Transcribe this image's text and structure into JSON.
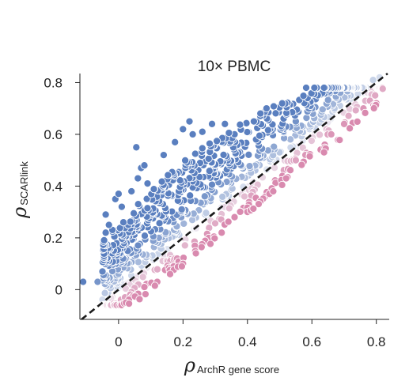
{
  "chart_data": {
    "type": "scatter",
    "title": "10× PBMC",
    "xlabel": {
      "symbol": "ρ",
      "subscript": "ArchR gene score"
    },
    "ylabel": {
      "symbol": "ρ",
      "subscript": "SCARlink"
    },
    "xlim": [
      -0.12,
      0.84
    ],
    "ylim": [
      -0.115,
      0.835
    ],
    "x_ticks": [
      {
        "value": 0,
        "label": "0"
      },
      {
        "value": 0.2,
        "label": "0.2"
      },
      {
        "value": 0.4,
        "label": "0.4"
      },
      {
        "value": 0.6,
        "label": "0.6"
      },
      {
        "value": 0.8,
        "label": "0.8"
      }
    ],
    "y_ticks": [
      {
        "value": 0,
        "label": "0"
      },
      {
        "value": 0.2,
        "label": "0.2"
      },
      {
        "value": 0.4,
        "label": "0.4"
      },
      {
        "value": 0.6,
        "label": "0.6"
      },
      {
        "value": 0.8,
        "label": "0.8"
      }
    ],
    "diagonal": {
      "style": "dashed",
      "color": "#1a1a1a"
    },
    "colors": {
      "above": "#5a7fbf",
      "below": "#d98aaf",
      "neutral": "#eef0f6"
    },
    "outlier_points": [
      {
        "x": -0.11,
        "y": 0.03
      },
      {
        "x": -0.065,
        "y": 0.03
      },
      {
        "x": -0.05,
        "y": 0.07
      },
      {
        "x": -0.045,
        "y": 0.13
      },
      {
        "x": -0.04,
        "y": 0.29
      },
      {
        "x": -0.04,
        "y": 0.22
      },
      {
        "x": -0.03,
        "y": 0.25
      },
      {
        "x": -0.02,
        "y": 0.14
      },
      {
        "x": -0.01,
        "y": 0.35
      },
      {
        "x": 0,
        "y": 0.37
      },
      {
        "x": 0.01,
        "y": 0.32
      },
      {
        "x": 0.015,
        "y": 0.02
      },
      {
        "x": 0.03,
        "y": 0.25
      },
      {
        "x": 0.04,
        "y": 0.38
      },
      {
        "x": 0.055,
        "y": 0.55
      },
      {
        "x": 0.06,
        "y": 0.43
      },
      {
        "x": 0.07,
        "y": 0.47
      },
      {
        "x": 0.08,
        "y": 0.48
      },
      {
        "x": 0.09,
        "y": 0.41
      },
      {
        "x": 0.14,
        "y": 0.52
      },
      {
        "x": 0.175,
        "y": 0.57
      },
      {
        "x": 0.2,
        "y": 0.62
      },
      {
        "x": 0.22,
        "y": 0.65
      },
      {
        "x": 0.23,
        "y": 0.6
      },
      {
        "x": 0.26,
        "y": 0.61
      },
      {
        "x": 0.29,
        "y": 0.64
      },
      {
        "x": 0.33,
        "y": 0.64
      },
      {
        "x": 0.36,
        "y": 0.6
      },
      {
        "x": 0.42,
        "y": 0.65
      },
      {
        "x": 0.47,
        "y": 0.62
      },
      {
        "x": 0.52,
        "y": 0.63
      },
      {
        "x": 0.55,
        "y": 0.65
      },
      {
        "x": 0.6,
        "y": 0.7
      },
      {
        "x": 0.655,
        "y": 0.76
      },
      {
        "x": 0.67,
        "y": 0.7
      },
      {
        "x": 0.72,
        "y": 0.75
      },
      {
        "x": 0.79,
        "y": 0.81
      },
      {
        "x": 0.81,
        "y": 0.82
      },
      {
        "x": 0.76,
        "y": 0.7
      },
      {
        "x": 0.8,
        "y": 0.72
      },
      {
        "x": 0.78,
        "y": 0.73
      },
      {
        "x": 0.7,
        "y": 0.64
      },
      {
        "x": 0.66,
        "y": 0.6
      },
      {
        "x": 0.64,
        "y": 0.56
      },
      {
        "x": 0.58,
        "y": 0.52
      },
      {
        "x": 0.55,
        "y": 0.5
      },
      {
        "x": 0.52,
        "y": 0.43
      },
      {
        "x": 0.48,
        "y": 0.38
      },
      {
        "x": 0.44,
        "y": 0.34
      },
      {
        "x": 0.4,
        "y": 0.3
      },
      {
        "x": 0.36,
        "y": 0.28
      },
      {
        "x": 0.32,
        "y": 0.22
      },
      {
        "x": 0.28,
        "y": 0.2
      },
      {
        "x": 0.24,
        "y": 0.14
      },
      {
        "x": 0.2,
        "y": 0.1
      },
      {
        "x": 0.16,
        "y": 0.06
      },
      {
        "x": 0.12,
        "y": 0.03
      },
      {
        "x": 0.08,
        "y": 0.01
      },
      {
        "x": 0.04,
        "y": -0.01
      },
      {
        "x": 0.02,
        "y": -0.03
      }
    ],
    "cloud": {
      "count": 900,
      "seed": 11,
      "x_range": [
        -0.05,
        0.82
      ],
      "above_spread_max": 0.3,
      "below_spread_max": 0.11
    }
  }
}
